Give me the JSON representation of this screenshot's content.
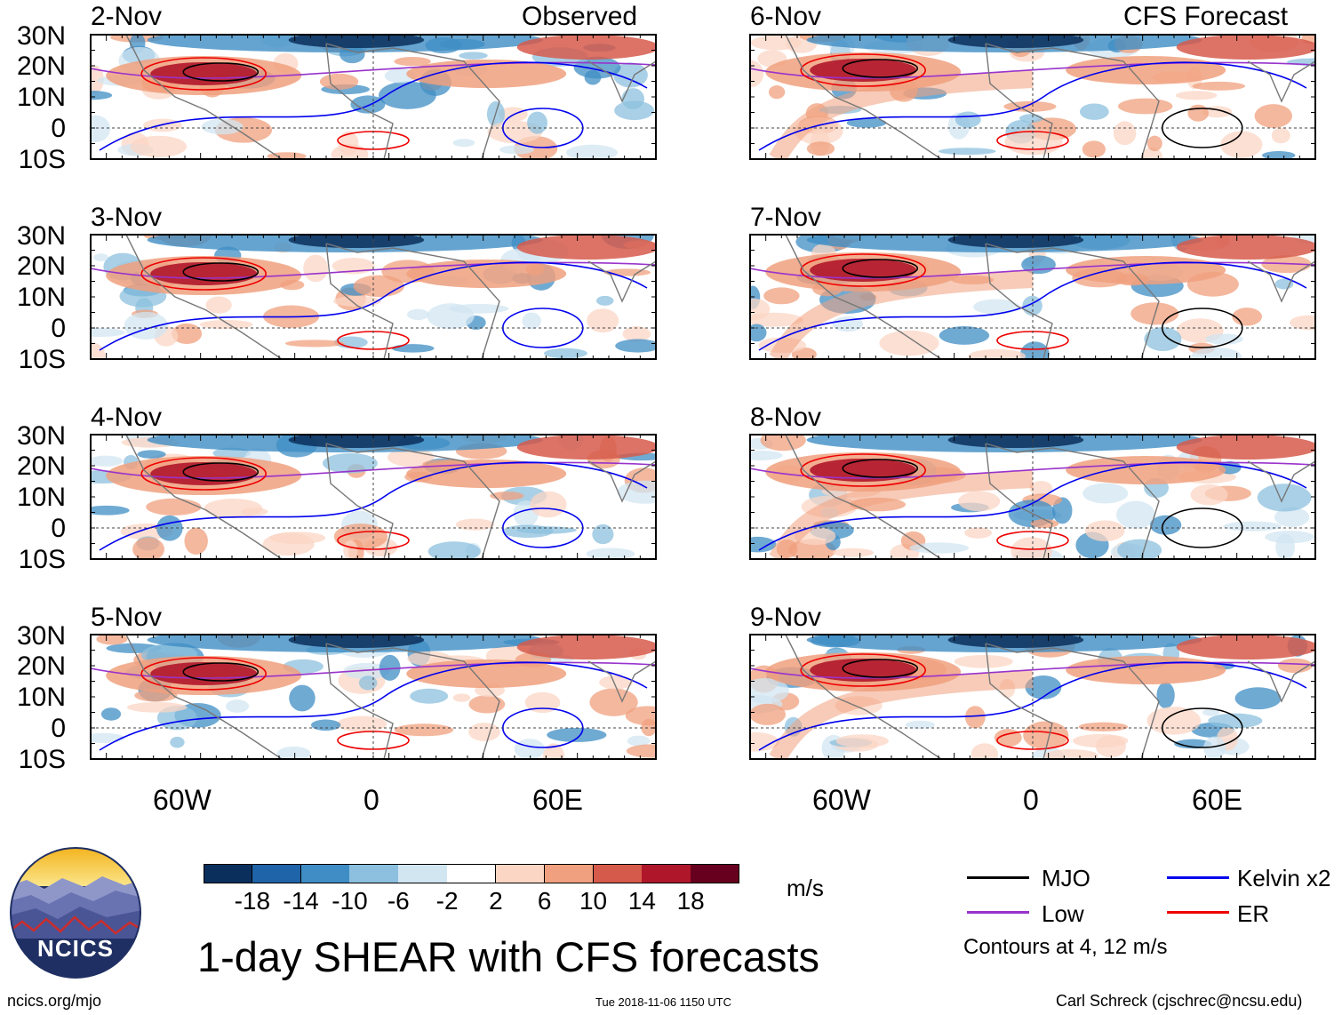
{
  "map": {
    "units": "m/s",
    "lat_labels": [
      "30N",
      "20N",
      "10N",
      "0",
      "10S"
    ],
    "lon_labels": [
      "60W",
      "0",
      "60E"
    ],
    "left_column_label": "Observed",
    "right_column_label": "CFS Forecast",
    "panels": [
      {
        "date": "2-Nov",
        "type": "observed"
      },
      {
        "date": "3-Nov",
        "type": "observed"
      },
      {
        "date": "4-Nov",
        "type": "observed"
      },
      {
        "date": "5-Nov",
        "type": "observed"
      },
      {
        "date": "6-Nov",
        "type": "forecast"
      },
      {
        "date": "7-Nov",
        "type": "forecast"
      },
      {
        "date": "8-Nov",
        "type": "forecast"
      },
      {
        "date": "9-Nov",
        "type": "forecast"
      }
    ]
  },
  "colorbar": {
    "labels": [
      "-18",
      "-14",
      "-10",
      "-6",
      "-2",
      "2",
      "6",
      "10",
      "14",
      "18"
    ],
    "colors": [
      "#0b2f5c",
      "#1f63a8",
      "#3f8dc4",
      "#8cc0de",
      "#d2e6f2",
      "#ffffff",
      "#fbd6c4",
      "#f0a07e",
      "#d65a4b",
      "#b0162a",
      "#67001f"
    ]
  },
  "legend": {
    "items": [
      {
        "label": "MJO",
        "color": "#000000"
      },
      {
        "label": "Low",
        "color": "#9933cc"
      },
      {
        "label": "Kelvin x2",
        "color": "#0000ee"
      },
      {
        "label": "ER",
        "color": "#ee0000"
      }
    ],
    "contours_note": "Contours at 4, 12 m/s"
  },
  "main_title": "1-day SHEAR with CFS forecasts",
  "logo_text": "NCICS",
  "footer": {
    "url": "ncics.org/mjo",
    "timestamp": "Tue 2018-11-06 1150 UTC",
    "author": "Carl Schreck (cjschrec@ncsu.edu)"
  }
}
